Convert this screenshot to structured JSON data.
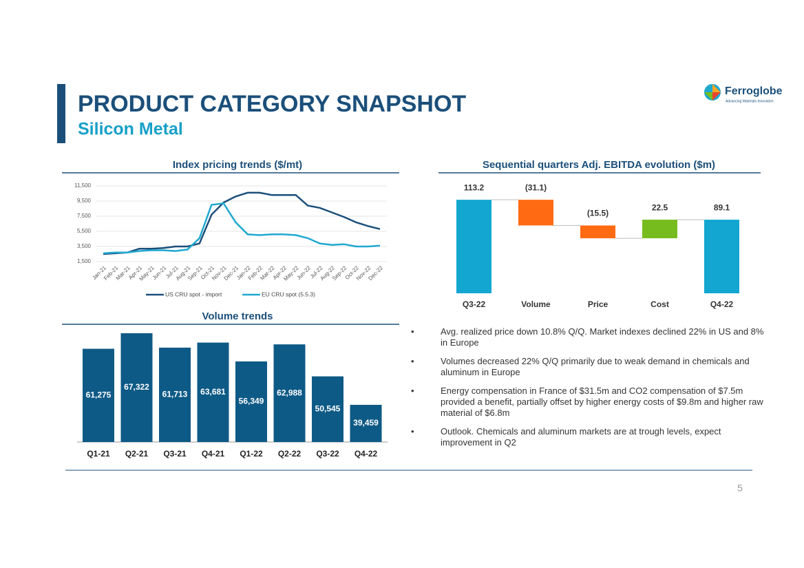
{
  "header": {
    "title": "PRODUCT CATEGORY SNAPSHOT",
    "subtitle": "Silicon Metal"
  },
  "logo": {
    "name": "Ferroglobe",
    "tagline": "Advancing Materials Innovation"
  },
  "page_number": "5",
  "bullets": [
    "Avg. realized price down 10.8% Q/Q. Market indexes declined 22% in US and 8% in Europe",
    "Volumes decreased 22% Q/Q primarily due to weak demand in chemicals and aluminum in Europe",
    "Energy compensation in France of  $31.5m and CO2 compensation of $7.5m provided a benefit, partially offset by higher energy costs of $9.8m and higher raw material of $6.8m",
    "Outlook. Chemicals and aluminum markets are at trough levels, expect improvement in Q2"
  ],
  "chart_data": [
    {
      "type": "line",
      "title": "Index pricing trends ($/mt)",
      "categories": [
        "Jan-21",
        "Feb-21",
        "Mar-21",
        "Apr-21",
        "May-21",
        "Jun-21",
        "Jul-21",
        "Aug-21",
        "Sep-21",
        "Oct-21",
        "Nov-21",
        "Dec-21",
        "Jan-22",
        "Feb-22",
        "Mar-22",
        "Apr-22",
        "May-22",
        "Jun-22",
        "Jul-22",
        "Aug-22",
        "Sep-22",
        "Oct-22",
        "Nov-22",
        "Dec-22"
      ],
      "series": [
        {
          "name": "US CRU spot - import",
          "color": "#1b4f7a",
          "values": [
            2500,
            2600,
            2700,
            3200,
            3200,
            3300,
            3500,
            3500,
            3900,
            7700,
            9300,
            10100,
            10600,
            10600,
            10300,
            10300,
            10300,
            8900,
            8600,
            8000,
            7400,
            6700,
            6200,
            5800
          ]
        },
        {
          "name": "EU CRU spot (5.5.3)",
          "color": "#1fa8d0",
          "values": [
            2600,
            2700,
            2700,
            2900,
            3000,
            3000,
            2900,
            3100,
            4600,
            9000,
            9200,
            6700,
            5100,
            5000,
            5100,
            5100,
            5000,
            4600,
            3900,
            3700,
            3800,
            3500,
            3500,
            3600
          ]
        }
      ],
      "ylim": [
        1500,
        11500
      ],
      "yticks": [
        {
          "value": 1500,
          "label": "1,500"
        },
        {
          "value": 3500,
          "label": "3,500"
        },
        {
          "value": 5500,
          "label": "5,500"
        },
        {
          "value": 7500,
          "label": "7,500"
        },
        {
          "value": 9500,
          "label": "9,500"
        },
        {
          "value": 11500,
          "label": "11,500"
        }
      ],
      "grid": true,
      "legend": "bottom"
    },
    {
      "type": "waterfall",
      "title": "Sequential quarters Adj. EBITDA evolution ($m)",
      "categories": [
        "Q3-22",
        "Volume",
        "Price",
        "Cost",
        "Q4-22"
      ],
      "values": [
        113.2,
        -31.1,
        -15.5,
        22.5,
        89.1
      ],
      "value_labels": [
        "113.2",
        "(31.1)",
        "(15.5)",
        "22.5",
        "89.1"
      ],
      "colors": [
        "#12a6d0",
        "#ff6a13",
        "#ff6a13",
        "#77bc1f",
        "#12a6d0"
      ],
      "ylim": [
        0,
        115
      ]
    },
    {
      "type": "bar",
      "title": "Volume trends",
      "categories": [
        "Q1-21",
        "Q2-21",
        "Q3-21",
        "Q4-21",
        "Q1-22",
        "Q2-22",
        "Q3-22",
        "Q4-22"
      ],
      "values": [
        61275,
        67322,
        61713,
        63681,
        56349,
        62988,
        50545,
        39459
      ],
      "value_labels": [
        "61,275",
        "67,322",
        "61,713",
        "63,681",
        "56,349",
        "62,988",
        "50,545",
        "39,459"
      ],
      "color": "#0e5a86",
      "ylim": [
        25000,
        70000
      ]
    }
  ]
}
